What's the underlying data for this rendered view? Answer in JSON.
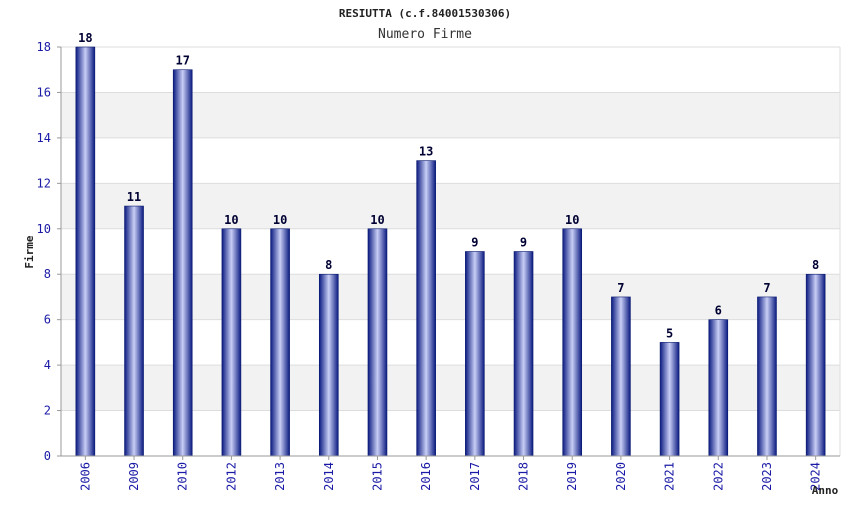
{
  "chart_data": {
    "type": "bar",
    "title": "RESIUTTA (c.f.84001530306)",
    "subtitle": "Numero Firme",
    "xlabel": "Anno",
    "ylabel": "Firme",
    "categories": [
      "2006",
      "2009",
      "2010",
      "2012",
      "2013",
      "2014",
      "2015",
      "2016",
      "2017",
      "2018",
      "2019",
      "2020",
      "2021",
      "2022",
      "2023",
      "2024"
    ],
    "values": [
      18,
      11,
      17,
      10,
      10,
      8,
      10,
      13,
      9,
      9,
      10,
      7,
      5,
      6,
      7,
      8
    ],
    "ylim": [
      0,
      18
    ],
    "yticks": [
      0,
      2,
      4,
      6,
      8,
      10,
      12,
      14,
      16,
      18
    ],
    "grid": true,
    "colors": {
      "bar_dark": "#0a1a80",
      "bar_light": "#c8cef5",
      "band": "#f2f2f2",
      "grid": "#dddddd",
      "tick_text": "#1a1aa6",
      "label_text": "#000033"
    }
  }
}
